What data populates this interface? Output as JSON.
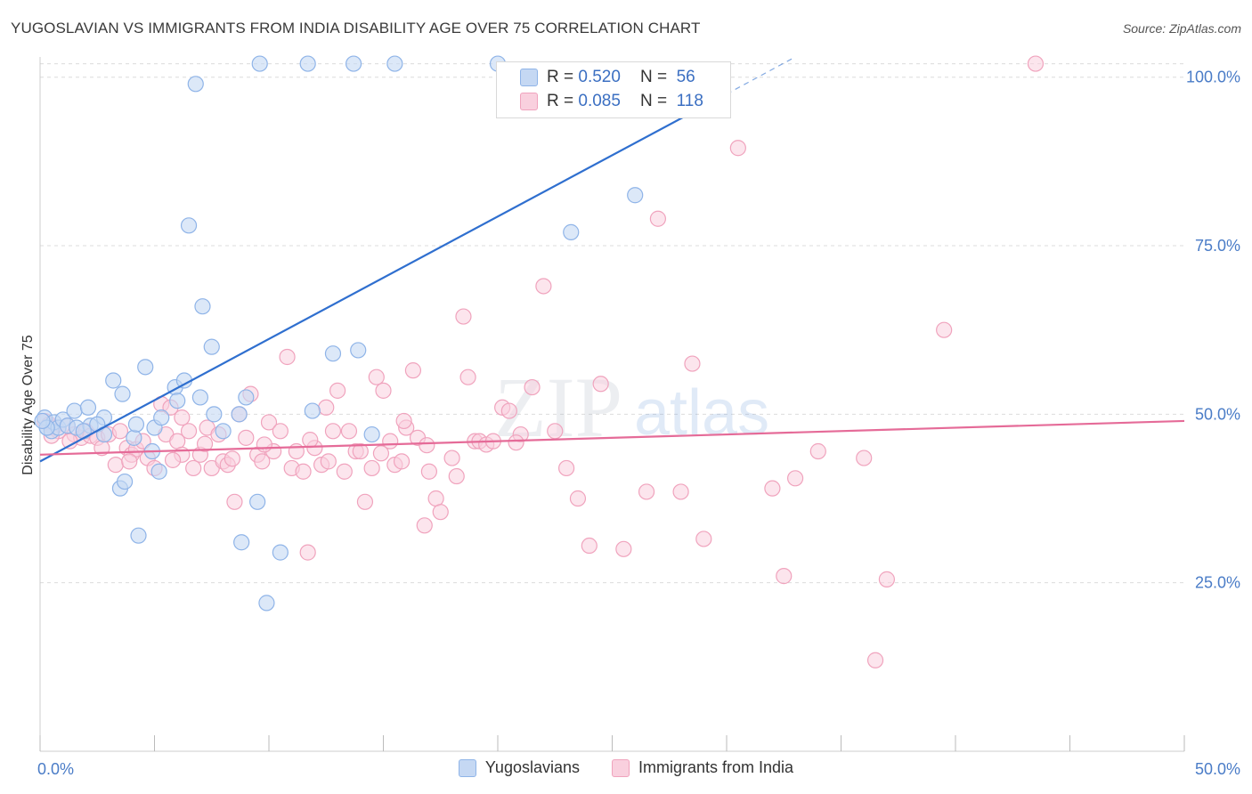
{
  "header": {
    "title": "YUGOSLAVIAN VS IMMIGRANTS FROM INDIA DISABILITY AGE OVER 75 CORRELATION CHART",
    "source": "Source: ZipAtlas.com"
  },
  "watermark": {
    "zip": "ZIP",
    "atlas": "atlas"
  },
  "legend_stats": [
    {
      "r_label": "R =",
      "r_value": "0.520",
      "n_label": "N =",
      "n_value": "56",
      "color": "#8fb4e8"
    },
    {
      "r_label": "R =",
      "r_value": "0.085",
      "n_label": "N =",
      "n_value": "118",
      "color": "#f4a9c2"
    }
  ],
  "colors": {
    "blue_fill": "#c5d8f3",
    "blue_stroke": "#8fb4e8",
    "blue_line": "#2f6fcf",
    "pink_fill": "#f9d0de",
    "pink_stroke": "#f0a3bd",
    "pink_line": "#e56b98",
    "grid": "#dcdcdc",
    "tick_text": "#4a7cc7"
  },
  "chart_data": {
    "type": "scatter",
    "title": "YUGOSLAVIAN VS IMMIGRANTS FROM INDIA DISABILITY AGE OVER 75 CORRELATION CHART",
    "xlabel": "",
    "ylabel": "Disability Age Over 75",
    "xlim": [
      0,
      50
    ],
    "ylim": [
      0,
      103
    ],
    "x_ticks": [
      0,
      50
    ],
    "x_tick_labels": [
      "0.0%",
      "50.0%"
    ],
    "y_ticks": [
      25,
      50,
      75,
      100
    ],
    "y_tick_labels": [
      "25.0%",
      "50.0%",
      "75.0%",
      "100.0%"
    ],
    "grid": true,
    "legend": "bottom",
    "series": [
      {
        "name": "Yugoslavians",
        "r": 0.52,
        "n": 56,
        "trend": {
          "x0": 0,
          "y0": 43,
          "x1": 30,
          "y1": 97.5,
          "dashed_to": [
            33,
            103
          ]
        },
        "points": [
          [
            0.2,
            49.5
          ],
          [
            0.3,
            48.0
          ],
          [
            0.5,
            47.5
          ],
          [
            0.6,
            48.8
          ],
          [
            0.8,
            48.0
          ],
          [
            1.0,
            49.2
          ],
          [
            1.2,
            48.3
          ],
          [
            1.5,
            50.5
          ],
          [
            1.6,
            48.0
          ],
          [
            2.1,
            51.0
          ],
          [
            2.2,
            48.3
          ],
          [
            2.8,
            49.5
          ],
          [
            2.5,
            48.5
          ],
          [
            2.8,
            47.0
          ],
          [
            3.2,
            55.0
          ],
          [
            3.5,
            39.0
          ],
          [
            3.6,
            53.0
          ],
          [
            3.7,
            40.0
          ],
          [
            4.1,
            46.5
          ],
          [
            4.2,
            48.5
          ],
          [
            4.3,
            32.0
          ],
          [
            4.6,
            57.0
          ],
          [
            4.9,
            44.5
          ],
          [
            5.0,
            48.0
          ],
          [
            5.2,
            41.5
          ],
          [
            5.3,
            49.5
          ],
          [
            5.9,
            54.0
          ],
          [
            6.0,
            52.0
          ],
          [
            6.3,
            55.0
          ],
          [
            6.5,
            78.0
          ],
          [
            6.8,
            99.0
          ],
          [
            7.1,
            66.0
          ],
          [
            7.0,
            52.5
          ],
          [
            7.5,
            60.0
          ],
          [
            7.6,
            50.0
          ],
          [
            8.0,
            47.5
          ],
          [
            8.7,
            50.0
          ],
          [
            8.8,
            31.0
          ],
          [
            9.0,
            52.5
          ],
          [
            9.5,
            37.0
          ],
          [
            9.6,
            102.0
          ],
          [
            9.9,
            22.0
          ],
          [
            10.5,
            29.5
          ],
          [
            11.7,
            102.0
          ],
          [
            11.9,
            50.5
          ],
          [
            12.8,
            59.0
          ],
          [
            13.7,
            102.0
          ],
          [
            13.9,
            59.5
          ],
          [
            14.5,
            47.0
          ],
          [
            15.5,
            102.0
          ],
          [
            20.0,
            102.0
          ],
          [
            23.2,
            77.0
          ],
          [
            26.0,
            82.5
          ],
          [
            0.3,
            48.0
          ],
          [
            0.1,
            49.0
          ],
          [
            1.9,
            47.5
          ]
        ]
      },
      {
        "name": "Immigrants from India",
        "r": 0.085,
        "n": 118,
        "trend": {
          "x0": 0,
          "y0": 44.0,
          "x1": 50,
          "y1": 49.0
        },
        "points": [
          [
            0.2,
            49.0
          ],
          [
            0.4,
            48.5
          ],
          [
            0.6,
            48.0
          ],
          [
            0.8,
            47.5
          ],
          [
            1.2,
            48.3
          ],
          [
            1.5,
            47.0
          ],
          [
            1.8,
            46.5
          ],
          [
            2.0,
            47.5
          ],
          [
            2.2,
            46.8
          ],
          [
            2.5,
            46.5
          ],
          [
            2.7,
            45.0
          ],
          [
            3.0,
            47.0
          ],
          [
            3.3,
            42.5
          ],
          [
            3.5,
            47.5
          ],
          [
            3.8,
            45.0
          ],
          [
            4.0,
            44.0
          ],
          [
            4.2,
            44.8
          ],
          [
            4.5,
            46.0
          ],
          [
            4.7,
            43.5
          ],
          [
            5.0,
            42.0
          ],
          [
            5.3,
            51.5
          ],
          [
            5.5,
            47.0
          ],
          [
            5.7,
            51.0
          ],
          [
            6.0,
            46.0
          ],
          [
            6.2,
            44.0
          ],
          [
            6.5,
            47.5
          ],
          [
            6.7,
            42.0
          ],
          [
            7.0,
            44.0
          ],
          [
            7.3,
            48.0
          ],
          [
            7.5,
            42.0
          ],
          [
            7.8,
            47.0
          ],
          [
            8.0,
            43.0
          ],
          [
            8.2,
            42.5
          ],
          [
            8.5,
            37.0
          ],
          [
            8.7,
            50.0
          ],
          [
            9.0,
            46.5
          ],
          [
            9.2,
            53.0
          ],
          [
            9.5,
            44.0
          ],
          [
            9.7,
            43.0
          ],
          [
            10.0,
            48.8
          ],
          [
            10.2,
            44.5
          ],
          [
            10.5,
            47.5
          ],
          [
            10.8,
            58.5
          ],
          [
            11.0,
            42.0
          ],
          [
            11.2,
            44.5
          ],
          [
            11.5,
            41.5
          ],
          [
            11.7,
            29.5
          ],
          [
            12.0,
            45.0
          ],
          [
            12.3,
            42.5
          ],
          [
            12.5,
            51.0
          ],
          [
            12.8,
            47.5
          ],
          [
            13.0,
            53.5
          ],
          [
            13.3,
            41.5
          ],
          [
            13.5,
            47.5
          ],
          [
            13.8,
            44.5
          ],
          [
            14.0,
            44.5
          ],
          [
            14.2,
            37.0
          ],
          [
            14.5,
            42.0
          ],
          [
            14.7,
            55.5
          ],
          [
            15.0,
            53.5
          ],
          [
            15.3,
            46.0
          ],
          [
            15.5,
            42.5
          ],
          [
            15.8,
            43.0
          ],
          [
            16.0,
            48.0
          ],
          [
            16.3,
            56.5
          ],
          [
            16.5,
            46.5
          ],
          [
            16.8,
            33.5
          ],
          [
            17.0,
            41.5
          ],
          [
            17.3,
            37.5
          ],
          [
            17.5,
            35.5
          ],
          [
            18.0,
            43.5
          ],
          [
            18.5,
            64.5
          ],
          [
            18.7,
            55.5
          ],
          [
            19.0,
            46.0
          ],
          [
            19.2,
            46.0
          ],
          [
            19.5,
            45.5
          ],
          [
            19.8,
            46.0
          ],
          [
            20.2,
            51.0
          ],
          [
            20.5,
            50.5
          ],
          [
            21.0,
            47.0
          ],
          [
            21.5,
            54.0
          ],
          [
            22.0,
            69.0
          ],
          [
            22.5,
            47.5
          ],
          [
            23.0,
            42.0
          ],
          [
            23.5,
            37.5
          ],
          [
            24.0,
            30.5
          ],
          [
            24.5,
            54.5
          ],
          [
            25.5,
            30.0
          ],
          [
            26.5,
            38.5
          ],
          [
            27.0,
            79.0
          ],
          [
            28.0,
            38.5
          ],
          [
            28.5,
            57.5
          ],
          [
            29.0,
            31.5
          ],
          [
            30.5,
            89.5
          ],
          [
            32.0,
            39.0
          ],
          [
            32.5,
            26.0
          ],
          [
            33.0,
            40.5
          ],
          [
            34.0,
            44.5
          ],
          [
            36.0,
            43.5
          ],
          [
            37.0,
            25.5
          ],
          [
            36.5,
            13.5
          ],
          [
            39.5,
            62.5
          ],
          [
            43.5,
            102.0
          ],
          [
            6.2,
            49.5
          ],
          [
            9.8,
            45.5
          ],
          [
            12.6,
            43.0
          ],
          [
            15.9,
            49.0
          ],
          [
            18.2,
            40.8
          ],
          [
            20.8,
            45.8
          ],
          [
            0.5,
            46.8
          ],
          [
            1.3,
            46.0
          ],
          [
            3.9,
            43.0
          ],
          [
            5.8,
            43.2
          ],
          [
            7.2,
            45.6
          ],
          [
            8.4,
            43.4
          ],
          [
            11.8,
            46.2
          ],
          [
            14.9,
            44.2
          ],
          [
            16.9,
            45.4
          ]
        ]
      }
    ]
  },
  "bottom_legend": [
    {
      "label": "Yugoslavians",
      "color": "#8fb4e8",
      "fill": "#c5d8f3"
    },
    {
      "label": "Immigrants from India",
      "color": "#f0a3bd",
      "fill": "#f9d0de"
    }
  ]
}
